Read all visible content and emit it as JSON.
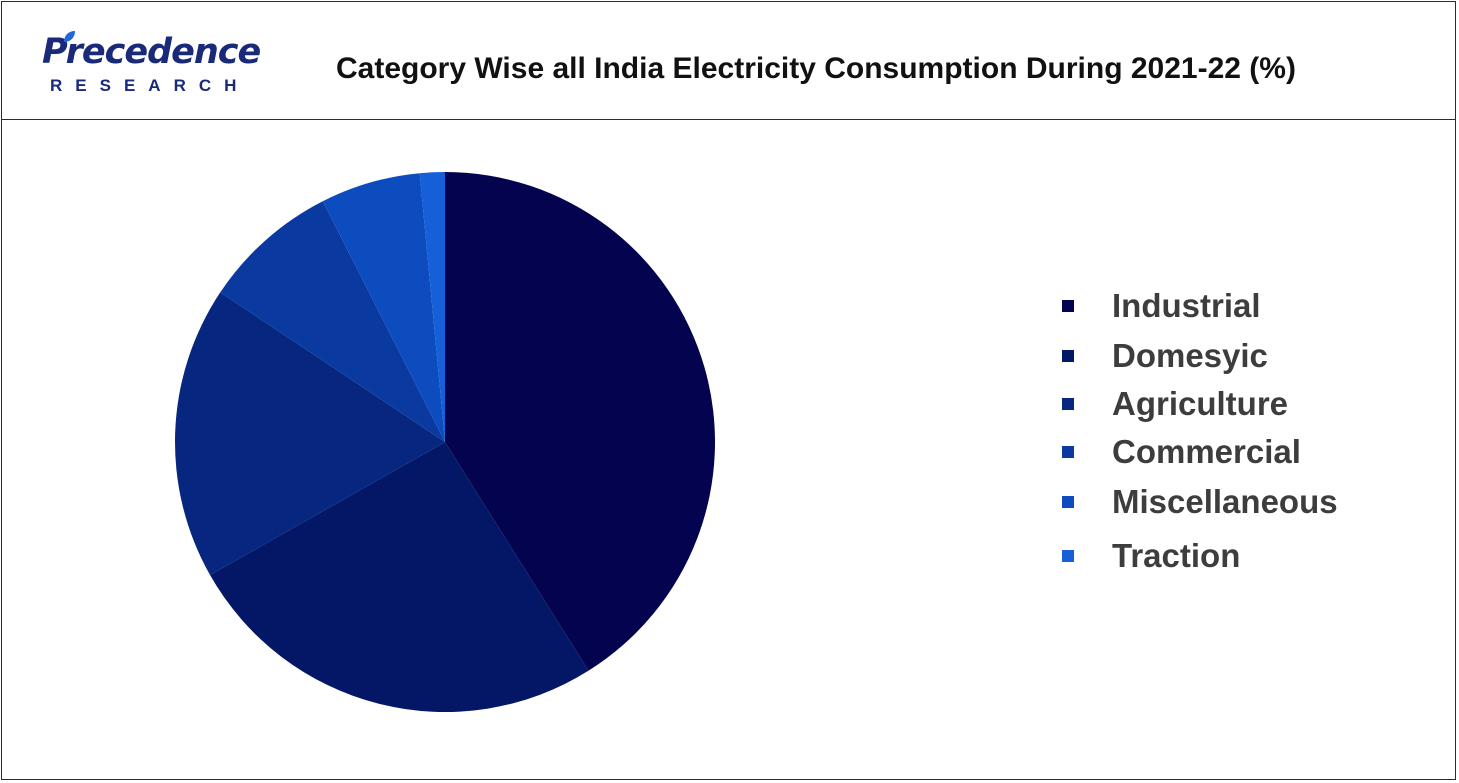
{
  "header": {
    "logo_name": "Precedence",
    "logo_sub": "RESEARCH",
    "title": "Category Wise all India Electricity Consumption During 2021-22 (%)"
  },
  "colors": {
    "border": "#1e2a5a",
    "logo": "#1a2a7a",
    "logo_leaf": "#1e6ad6"
  },
  "chart_data": {
    "type": "pie",
    "title": "Category Wise all India Electricity Consumption During 2021-22 (%)",
    "legend_position": "right",
    "slices": [
      {
        "label": "Industrial",
        "value": 41.2,
        "color": "#03034f"
      },
      {
        "label": "Domesyic",
        "value": 25.8,
        "color": "#031766"
      },
      {
        "label": "Agriculture",
        "value": 17.6,
        "color": "#062680"
      },
      {
        "label": "Commercial",
        "value": 8.2,
        "color": "#0a3aa0"
      },
      {
        "label": "Miscellaneous",
        "value": 6.0,
        "color": "#0d4cbe"
      },
      {
        "label": "Traction",
        "value": 1.5,
        "color": "#1560d9"
      }
    ]
  }
}
